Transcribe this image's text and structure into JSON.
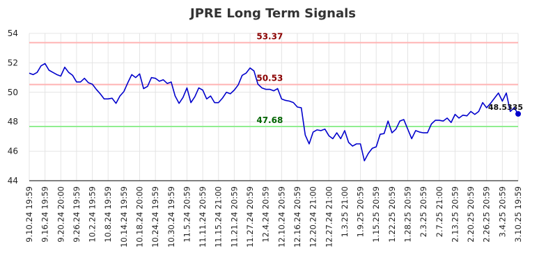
{
  "chart_data": {
    "type": "line",
    "title": "JPRE Long Term Signals",
    "xlabel": "",
    "ylabel": "",
    "ylim": [
      44,
      54
    ],
    "yticks": [
      44,
      46,
      48,
      50,
      52,
      54
    ],
    "grid": true,
    "x_tick_labels": [
      "9.10.24 19:59",
      "9.16.24 19:59",
      "9.20.24 20:00",
      "9.26.24 19:59",
      "10.2.24 19:59",
      "10.8.24 19:59",
      "10.14.24 19:59",
      "10.18.24 20:00",
      "10.24.24 19:59",
      "10.30.24 19:59",
      "11.5.24 20:59",
      "11.11.24 20:59",
      "11.15.24 21:00",
      "11.21.24 20:59",
      "11.27.24 20:59",
      "12.4.24 20:59",
      "12.10.24 20:59",
      "12.16.24 20:59",
      "12.20.24 21:00",
      "12.27.24 21:00",
      "1.3.25 21:00",
      "1.9.25 20:59",
      "1.15.25 20:59",
      "1.22.25 20:59",
      "1.28.25 20:59",
      "2.3.25 20:59",
      "2.7.25 21:00",
      "2.13.25 20:59",
      "2.20.25 20:59",
      "2.26.25 20:59",
      "3.4.25 20:59",
      "3.10.25 19:59"
    ],
    "reference_lines": [
      {
        "value": 53.37,
        "label": "53.37",
        "line_color": "#ffb3b3",
        "label_color": "#8b0000"
      },
      {
        "value": 50.53,
        "label": "50.53",
        "line_color": "#ffb3b3",
        "label_color": "#8b0000"
      },
      {
        "value": 47.68,
        "label": "47.68",
        "line_color": "#90ee90",
        "label_color": "#006400"
      }
    ],
    "last_point": {
      "value": 48.5335,
      "label": "48.5335"
    },
    "series": [
      {
        "color": "#0000cc",
        "values": [
          51.3,
          51.2,
          51.35,
          51.8,
          51.95,
          51.5,
          51.35,
          51.2,
          51.1,
          51.7,
          51.35,
          51.15,
          50.7,
          50.7,
          50.95,
          50.65,
          50.55,
          50.2,
          49.9,
          49.55,
          49.55,
          49.6,
          49.25,
          49.75,
          50.05,
          50.65,
          51.2,
          51.0,
          51.25,
          50.25,
          50.4,
          51.0,
          50.95,
          50.75,
          50.85,
          50.6,
          50.7,
          49.75,
          49.25,
          49.65,
          50.3,
          49.3,
          49.7,
          50.3,
          50.15,
          49.55,
          49.75,
          49.3,
          49.3,
          49.6,
          50.0,
          49.9,
          50.15,
          50.5,
          51.15,
          51.3,
          51.65,
          51.45,
          50.55,
          50.3,
          50.2,
          50.2,
          50.1,
          50.25,
          49.55,
          49.45,
          49.4,
          49.3,
          49.0,
          48.95,
          47.1,
          46.5,
          47.3,
          47.45,
          47.4,
          47.5,
          47.05,
          46.85,
          47.25,
          46.85,
          47.4,
          46.6,
          46.35,
          46.5,
          46.5,
          45.35,
          45.85,
          46.2,
          46.3,
          47.15,
          47.2,
          48.05,
          47.25,
          47.5,
          48.05,
          48.15,
          47.5,
          46.85,
          47.4,
          47.3,
          47.25,
          47.25,
          47.85,
          48.1,
          48.1,
          48.05,
          48.25,
          47.95,
          48.5,
          48.25,
          48.45,
          48.4,
          48.7,
          48.5,
          48.7,
          49.3,
          48.95,
          49.25,
          49.6,
          49.95,
          49.4,
          49.95,
          48.7,
          48.95,
          48.5335
        ]
      }
    ]
  }
}
